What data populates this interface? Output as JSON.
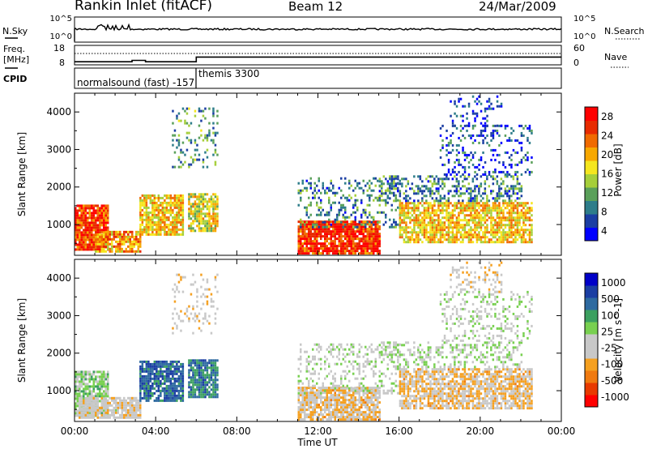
{
  "header": {
    "station": "Rankin Inlet (fitACF)",
    "beam": "Beam 12",
    "date": "24/Mar/2009"
  },
  "status_panels": {
    "nsky": {
      "label": "N.Sky",
      "ticks": [
        "10^5",
        "10^0"
      ],
      "right_label": "N.Search",
      "right_ticks": [
        "10^5",
        "10^0"
      ]
    },
    "freq": {
      "label_top": "Freq.",
      "label_unit": "[MHz]",
      "ticks": [
        "18",
        "8"
      ],
      "right_label": "Nave",
      "right_ticks": [
        "60",
        "0"
      ],
      "values_mhz": [
        {
          "from": "00:00",
          "to": "02:50",
          "value": 9.6
        },
        {
          "from": "02:50",
          "to": "03:30",
          "value": 10.3
        },
        {
          "from": "03:30",
          "to": "06:00",
          "value": 9.6
        },
        {
          "from": "06:00",
          "to": "24:00",
          "value": 12.0
        }
      ]
    },
    "cpid": {
      "label": "CPID",
      "entries": [
        {
          "time": "00:00",
          "text": "normalsound (fast) -157"
        },
        {
          "time": "06:00",
          "text": "themis 3300"
        }
      ]
    }
  },
  "chart_data": [
    {
      "type": "heatmap",
      "title": "",
      "xlabel": "",
      "ylabel": "Slant Range [km]",
      "x_ticks": [
        "00:00",
        "04:00",
        "08:00",
        "12:00",
        "16:00",
        "20:00",
        "00:00"
      ],
      "x_range_hours": [
        0,
        24
      ],
      "ylim": [
        180,
        4500
      ],
      "y_ticks": [
        1000,
        2000,
        3000,
        4000
      ],
      "colorbar": {
        "label": "Power [dB]",
        "ticks": [
          "28",
          "24",
          "20",
          "16",
          "12",
          "8",
          "4"
        ],
        "range": [
          0,
          30
        ],
        "colors": [
          "#0000ff",
          "#1b3ea3",
          "#2e7d8a",
          "#5aa05a",
          "#a6cf3a",
          "#f5e61e",
          "#f7a800",
          "#f06a00",
          "#e82b00",
          "#ff0000"
        ]
      },
      "regions": [
        {
          "t0": 0.0,
          "t1": 1.6,
          "r0": 300,
          "r1": 1500,
          "value": 25,
          "density": 0.9
        },
        {
          "t0": 1.0,
          "t1": 3.2,
          "r0": 250,
          "r1": 800,
          "value": 20,
          "density": 0.8
        },
        {
          "t0": 3.2,
          "t1": 5.3,
          "r0": 700,
          "r1": 1800,
          "value": 18,
          "density": 0.85
        },
        {
          "t0": 5.6,
          "t1": 7.0,
          "r0": 800,
          "r1": 1800,
          "value": 16,
          "density": 0.8
        },
        {
          "t0": 4.8,
          "t1": 7.0,
          "r0": 2500,
          "r1": 4100,
          "value": 10,
          "density": 0.2
        },
        {
          "t0": 11.0,
          "t1": 15.0,
          "r0": 200,
          "r1": 1100,
          "value": 26,
          "density": 0.9
        },
        {
          "t0": 11.0,
          "t1": 16.0,
          "r0": 900,
          "r1": 2200,
          "value": 8,
          "density": 0.3
        },
        {
          "t0": 16.0,
          "t1": 22.5,
          "r0": 500,
          "r1": 1600,
          "value": 18,
          "density": 0.75
        },
        {
          "t0": 15.0,
          "t1": 22.0,
          "r0": 1600,
          "r1": 2300,
          "value": 8,
          "density": 0.4
        },
        {
          "t0": 18.0,
          "t1": 22.5,
          "r0": 2300,
          "r1": 3600,
          "value": 5,
          "density": 0.25
        },
        {
          "t0": 18.5,
          "t1": 21.0,
          "r0": 3600,
          "r1": 4400,
          "value": 4,
          "density": 0.2
        }
      ]
    },
    {
      "type": "heatmap",
      "title": "",
      "xlabel": "Time UT",
      "ylabel": "Slant Range [km]",
      "x_ticks": [
        "00:00",
        "04:00",
        "08:00",
        "12:00",
        "16:00",
        "20:00",
        "00:00"
      ],
      "x_range_hours": [
        0,
        24
      ],
      "ylim": [
        180,
        4500
      ],
      "y_ticks": [
        1000,
        2000,
        3000,
        4000
      ],
      "colorbar": {
        "label": "Velocity [m s^-1]",
        "ticks": [
          "1000",
          "500",
          "100",
          "25",
          "-25",
          "-100",
          "-500",
          "-1000"
        ],
        "range": [
          -1200,
          1200
        ],
        "colors": [
          "#ff0000",
          "#e83a00",
          "#f07a10",
          "#f5a020",
          "#c8c8c8",
          "#c8c8c8",
          "#78d050",
          "#3ca060",
          "#2e6aa0",
          "#1b3ea3",
          "#0000c8"
        ]
      },
      "regions": [
        {
          "t0": 0.0,
          "t1": 1.6,
          "r0": 300,
          "r1": 1500,
          "value": 150,
          "density": 0.85
        },
        {
          "t0": 0.2,
          "t1": 3.2,
          "r0": 250,
          "r1": 800,
          "value": -150,
          "density": 0.8
        },
        {
          "t0": 3.2,
          "t1": 5.3,
          "r0": 700,
          "r1": 1800,
          "value": 700,
          "density": 0.85
        },
        {
          "t0": 5.6,
          "t1": 7.0,
          "r0": 800,
          "r1": 1800,
          "value": 600,
          "density": 0.8
        },
        {
          "t0": 4.8,
          "t1": 7.0,
          "r0": 2500,
          "r1": 4100,
          "value": -200,
          "density": 0.2
        },
        {
          "t0": 11.0,
          "t1": 15.0,
          "r0": 200,
          "r1": 1100,
          "value": -300,
          "density": 0.85
        },
        {
          "t0": 11.0,
          "t1": 16.0,
          "r0": 900,
          "r1": 2200,
          "value": 0,
          "density": 0.3
        },
        {
          "t0": 16.0,
          "t1": 22.5,
          "r0": 500,
          "r1": 1600,
          "value": -300,
          "density": 0.75
        },
        {
          "t0": 15.0,
          "t1": 22.0,
          "r0": 1600,
          "r1": 2300,
          "value": 60,
          "density": 0.35
        },
        {
          "t0": 18.0,
          "t1": 22.5,
          "r0": 2300,
          "r1": 3600,
          "value": 0,
          "density": 0.25
        },
        {
          "t0": 18.5,
          "t1": 21.0,
          "r0": 3600,
          "r1": 4400,
          "value": -150,
          "density": 0.2
        }
      ]
    }
  ]
}
